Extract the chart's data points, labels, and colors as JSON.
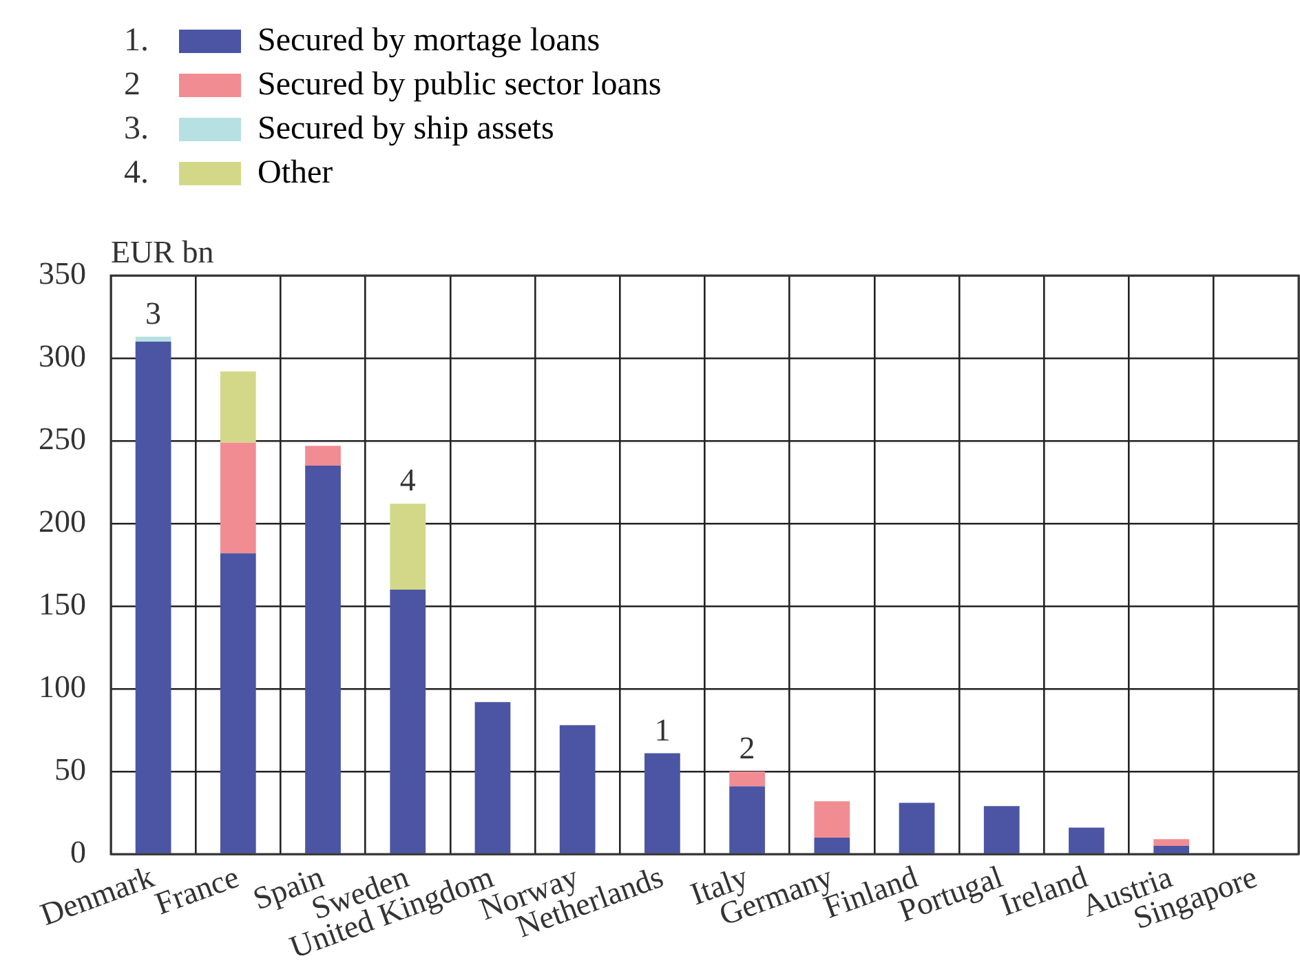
{
  "chart_data": {
    "type": "bar",
    "stacked": true,
    "ylabel": "EUR bn",
    "categories": [
      "Denmark",
      "France",
      "Spain",
      "Sweden",
      "United Kingdom",
      "Norway",
      "Netherlands",
      "Italy",
      "Germany",
      "Finland",
      "Portugal",
      "Ireland",
      "Austria",
      "Singapore"
    ],
    "series": [
      {
        "name": "Secured by mortage loans",
        "color": "#4b55a3",
        "values": [
          310,
          182,
          235,
          160,
          92,
          78,
          61,
          41,
          10,
          31,
          29,
          16,
          5,
          0
        ]
      },
      {
        "name": "Secured by public sector loans",
        "color": "#f28c93",
        "values": [
          0,
          67,
          12,
          0,
          0,
          0,
          0,
          9,
          22,
          0,
          0,
          0,
          4,
          0
        ]
      },
      {
        "name": "Secured by ship assets",
        "color": "#b6e0e2",
        "values": [
          3,
          0,
          0,
          0,
          0,
          0,
          0,
          0,
          0,
          0,
          0,
          0,
          0,
          0
        ]
      },
      {
        "name": "Other",
        "color": "#d3d888",
        "values": [
          0,
          43,
          0,
          52,
          0,
          0,
          0,
          0,
          0,
          0,
          0,
          0,
          0,
          0
        ]
      }
    ],
    "annotations": [
      "1.",
      "2",
      "3.",
      "4.",
      {
        "text": "3",
        "x": "Denmark",
        "y": 313
      },
      {
        "text": "4",
        "x": "Sweden",
        "y": 212
      },
      {
        "text": "1",
        "x": "Netherlands",
        "y": 61
      },
      {
        "text": "2",
        "x": "Italy",
        "y": 50
      }
    ],
    "ylim": [
      0,
      350
    ],
    "yticks": [
      0,
      50,
      100,
      150,
      200,
      250,
      300,
      350
    ],
    "grid": true,
    "legend": "top left"
  }
}
